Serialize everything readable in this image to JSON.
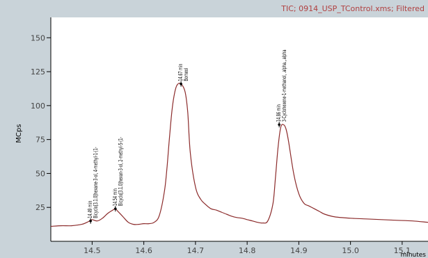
{
  "colors": {
    "frame_bg": "#c9d3d9",
    "plot_bg": "#ffffff",
    "trace": "#8b2a2a",
    "title": "#b04040",
    "axis": "#000000",
    "tick_text": "#444444"
  },
  "chart_data": {
    "type": "line",
    "title": "TIC;  0914_USP_TControl.xms;  Filtered",
    "ylabel": "MCps",
    "xlabel": "minutes",
    "xlim": [
      14.42,
      15.15
    ],
    "ylim": [
      0,
      165
    ],
    "x_ticks": [
      14.5,
      14.6,
      14.7,
      14.8,
      14.9,
      15.0,
      15.1
    ],
    "x_tick_labels": [
      "14.5",
      "14.6",
      "14.7",
      "14.8",
      "14.9",
      "15.0",
      "15.1"
    ],
    "y_ticks": [
      25,
      50,
      75,
      100,
      125,
      150
    ],
    "y_tick_labels": [
      "25",
      "50",
      "75",
      "100",
      "125",
      "150"
    ],
    "grid": false,
    "series": [
      {
        "x": [
          14.42,
          14.44,
          14.46,
          14.48,
          14.49,
          14.495,
          14.5,
          14.51,
          14.52,
          14.53,
          14.54,
          14.545,
          14.55,
          14.56,
          14.57,
          14.58,
          14.59,
          14.6,
          14.61,
          14.62,
          14.63,
          14.64,
          14.645,
          14.65,
          14.655,
          14.66,
          14.665,
          14.672,
          14.68,
          14.685,
          14.69,
          14.7,
          14.71,
          14.72,
          14.73,
          14.74,
          14.75,
          14.76,
          14.77,
          14.78,
          14.79,
          14.8,
          14.81,
          14.82,
          14.83,
          14.84,
          14.85,
          14.855,
          14.86,
          14.865,
          14.87,
          14.875,
          14.88,
          14.89,
          14.9,
          14.91,
          14.92,
          14.93,
          14.94,
          14.95,
          14.97,
          15.0,
          15.03,
          15.06,
          15.09,
          15.12,
          15.15
        ],
        "y": [
          11,
          11.5,
          11.5,
          12.5,
          14,
          15,
          16,
          15,
          17,
          20.5,
          23,
          24,
          22,
          18,
          14,
          12.5,
          12.5,
          13,
          13,
          14,
          19,
          37,
          55,
          78,
          98,
          110,
          115.5,
          116,
          110,
          95,
          65,
          40,
          31,
          27,
          24,
          23,
          21.5,
          20,
          18.5,
          17.5,
          17,
          16,
          15,
          14,
          13.5,
          15,
          28,
          48,
          70,
          84,
          86,
          83,
          74,
          50,
          35,
          28,
          26,
          24,
          22,
          20,
          18,
          17,
          16.5,
          16,
          15.5,
          15,
          14
        ]
      }
    ],
    "annotations": [
      {
        "x": 14.497,
        "y": 15,
        "text": "14.49 min",
        "sub": "Bicyclo[3.1.0]hexane-3-ol, 4-methyl-1-(1-"
      },
      {
        "x": 14.545,
        "y": 24,
        "text": "14.54 min",
        "sub": "Bicyclo[3.1.0]hexan-3-ol, 2-methyl-5-(1-"
      },
      {
        "x": 14.672,
        "y": 116,
        "text": "14.67 min",
        "sub": "Borneol"
      },
      {
        "x": 14.862,
        "y": 86,
        "text": "14.86 min",
        "sub": "3-Cyclohexene-1-methanol, .alpha.,.alpha"
      }
    ]
  }
}
